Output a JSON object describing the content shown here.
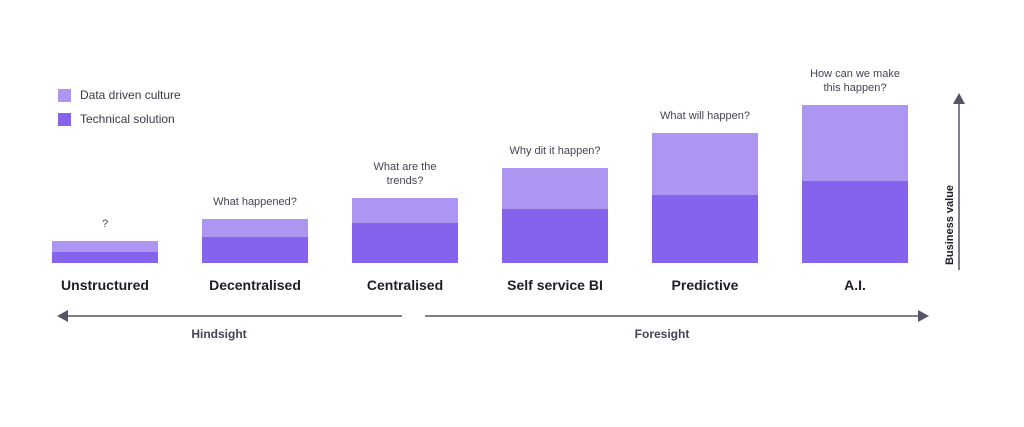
{
  "colors": {
    "data_driven_culture": "#ad96f2",
    "technical_solution": "#8563ec",
    "axis": "#555566",
    "text_dark": "#1e1e28",
    "text_mid": "#444454"
  },
  "legend": [
    {
      "label": "Data driven culture",
      "color": "#ad96f2"
    },
    {
      "label": "Technical solution",
      "color": "#8563ec"
    }
  ],
  "chart_data": {
    "type": "bar",
    "stacked": true,
    "categories": [
      "Unstructured",
      "Decentralised",
      "Centralised",
      "Self service BI",
      "Predictive",
      "A.I."
    ],
    "series": [
      {
        "name": "Technical solution",
        "values": [
          11,
          26,
          40,
          54,
          68,
          82
        ]
      },
      {
        "name": "Data driven culture",
        "values": [
          11,
          18,
          25,
          41,
          62,
          76
        ]
      }
    ],
    "questions": [
      [
        "?"
      ],
      [
        "What happened?"
      ],
      [
        "What are the",
        "trends?"
      ],
      [
        "Why dit it happen?"
      ],
      [
        "What will happen?"
      ],
      [
        "How can we make",
        "this happen?"
      ]
    ],
    "ylabel": "Business value",
    "ylim": [
      0,
      160
    ],
    "arrows": {
      "left": "Hindsight",
      "right": "Foresight"
    },
    "grid": false,
    "legend_position": "top-left"
  }
}
